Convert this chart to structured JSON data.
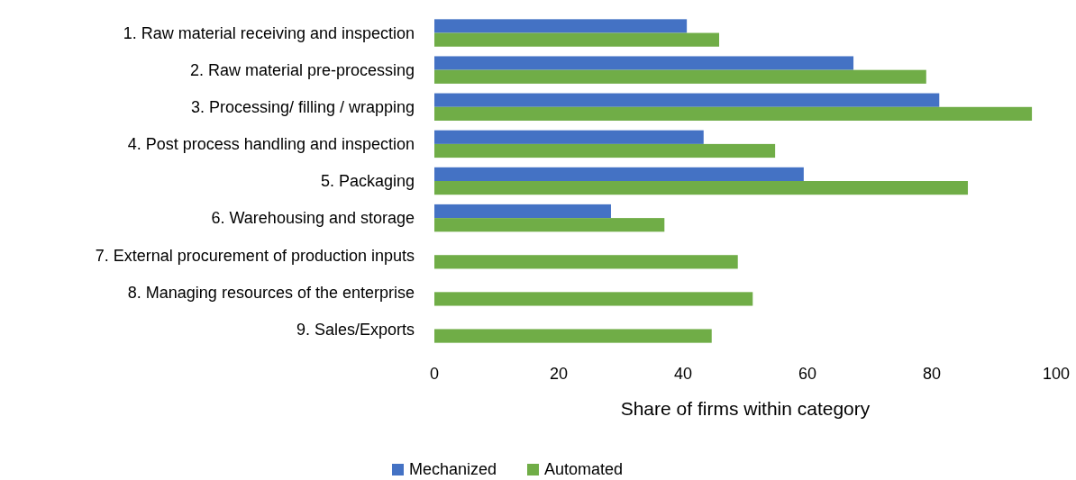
{
  "chart_data": {
    "type": "bar",
    "orientation": "horizontal",
    "xlabel": "Share of firms within category",
    "categories": [
      "1. Raw material receiving and inspection",
      "2. Raw material pre-processing",
      "3. Processing/ filling / wrapping",
      "4. Post process handling and inspection",
      "5. Packaging",
      "6. Warehousing and storage",
      "7. External procurement of production inputs",
      "8. Managing resources of the enterprise",
      "9. Sales/Exports"
    ],
    "series": [
      {
        "name": "Mechanized",
        "color": "#4472c4",
        "values": [
          40.6,
          67.4,
          81.2,
          43.3,
          59.4,
          28.4,
          null,
          null,
          null
        ]
      },
      {
        "name": "Automated",
        "color": "#70ad47",
        "values": [
          45.8,
          79.1,
          96.1,
          54.8,
          85.8,
          37.0,
          48.8,
          51.2,
          44.6
        ]
      }
    ],
    "xlim": [
      0,
      100
    ],
    "xticks": [
      0,
      20,
      40,
      60,
      80,
      100
    ],
    "grid": false,
    "legend": "bottom"
  }
}
